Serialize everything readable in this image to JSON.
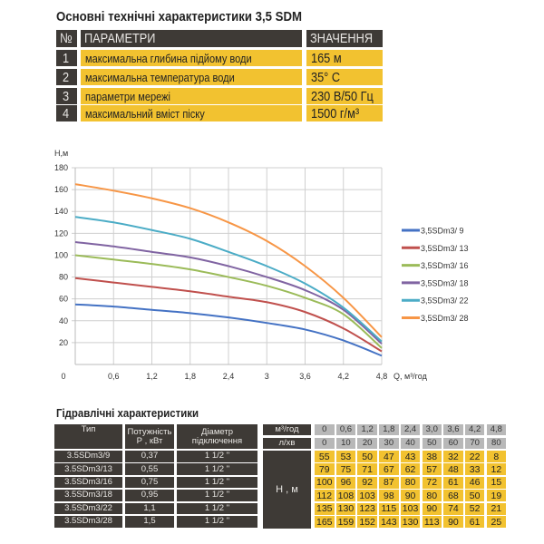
{
  "main_title": "Основні технічні характеристики 3,5 SDM",
  "spec_table": {
    "headers": [
      "№",
      "ПАРАМЕТРИ",
      "ЗНАЧЕННЯ"
    ],
    "rows": [
      {
        "n": "1",
        "param": "максимальна глибина підйому води",
        "value": "165 м"
      },
      {
        "n": "2",
        "param": "максимальна температура води",
        "value": "35° C"
      },
      {
        "n": "3",
        "param": "параметри мережі",
        "value": "230 В/50 Гц"
      },
      {
        "n": "4",
        "param": "максимальний вміст піску",
        "value": "1500 г/м³"
      }
    ]
  },
  "chart_data": {
    "type": "line",
    "ylabel": "Н,м",
    "xlabel": "Q, м³/год",
    "x": [
      0,
      0.6,
      1.2,
      1.8,
      2.4,
      3.0,
      3.6,
      4.2,
      4.8
    ],
    "x_tick_labels": [
      "0",
      "0,6",
      "1,2",
      "1,8",
      "2,4",
      "3",
      "3,6",
      "4,2",
      "4,8"
    ],
    "y_tick_labels": [
      "20",
      "40",
      "60",
      "80",
      "100",
      "120",
      "140",
      "160",
      "180"
    ],
    "xlim": [
      0,
      4.8
    ],
    "ylim": [
      0,
      180
    ],
    "grid": true,
    "legend": "right",
    "series": [
      {
        "name": "3,5SDm3/ 9",
        "color": "#4472c4",
        "values": [
          55,
          53,
          50,
          47,
          43,
          38,
          32,
          22,
          8
        ]
      },
      {
        "name": "3,5SDm3/ 13",
        "color": "#c0504d",
        "values": [
          79,
          75,
          71,
          67,
          62,
          57,
          48,
          33,
          12
        ]
      },
      {
        "name": "3,5SDm3/ 16",
        "color": "#9bbb59",
        "values": [
          100,
          96,
          92,
          87,
          80,
          72,
          61,
          46,
          15
        ]
      },
      {
        "name": "3,5SDm3/ 18",
        "color": "#8064a2",
        "values": [
          112,
          108,
          103,
          98,
          90,
          80,
          68,
          50,
          19
        ]
      },
      {
        "name": "3,5SDm3/ 22",
        "color": "#4bacc6",
        "values": [
          135,
          130,
          123,
          115,
          103,
          90,
          74,
          52,
          21
        ]
      },
      {
        "name": "3,5SDm3/ 28",
        "color": "#f79646",
        "values": [
          165,
          159,
          152,
          143,
          130,
          113,
          90,
          61,
          25
        ]
      }
    ]
  },
  "hydro": {
    "title": "Гідравлічні характеристики",
    "col_type": "Тип",
    "col_power": "Потужність Р , кВт",
    "col_diam": "Діаметр підключення",
    "row_m3": "м³/год",
    "row_lmin": "л/хв",
    "h_label": "Н , м",
    "m3_values": [
      "0",
      "0,6",
      "1,2",
      "1,8",
      "2,4",
      "3,0",
      "3,6",
      "4,2",
      "4,8"
    ],
    "l_values": [
      "0",
      "10",
      "20",
      "30",
      "40",
      "50",
      "60",
      "70",
      "80"
    ],
    "rows": [
      {
        "type": "3.5SDm3/9",
        "power": "0,37",
        "diam": "1 1/2 \"",
        "h": [
          "55",
          "53",
          "50",
          "47",
          "43",
          "38",
          "32",
          "22",
          "8"
        ]
      },
      {
        "type": "3.5SDm3/13",
        "power": "0,55",
        "diam": "1 1/2 \"",
        "h": [
          "79",
          "75",
          "71",
          "67",
          "62",
          "57",
          "48",
          "33",
          "12"
        ]
      },
      {
        "type": "3.5SDm3/16",
        "power": "0,75",
        "diam": "1 1/2 \"",
        "h": [
          "100",
          "96",
          "92",
          "87",
          "80",
          "72",
          "61",
          "46",
          "15"
        ]
      },
      {
        "type": "3.5SDm3/18",
        "power": "0,95",
        "diam": "1 1/2 \"",
        "h": [
          "112",
          "108",
          "103",
          "98",
          "90",
          "80",
          "68",
          "50",
          "19"
        ]
      },
      {
        "type": "3.5SDm3/22",
        "power": "1,1",
        "diam": "1 1/2 \"",
        "h": [
          "135",
          "130",
          "123",
          "115",
          "103",
          "90",
          "74",
          "52",
          "21"
        ]
      },
      {
        "type": "3.5SDm3/28",
        "power": "1,5",
        "diam": "1 1/2 \"",
        "h": [
          "165",
          "159",
          "152",
          "143",
          "130",
          "113",
          "90",
          "61",
          "25"
        ]
      }
    ]
  }
}
